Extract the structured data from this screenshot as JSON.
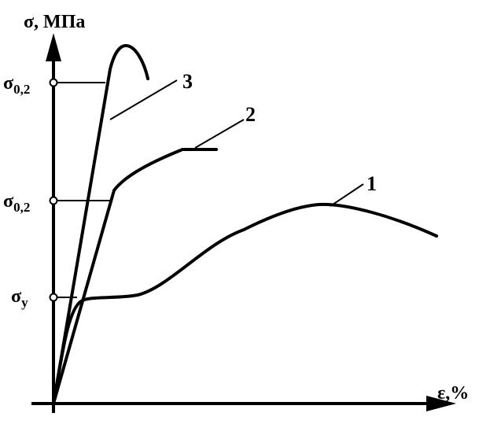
{
  "axes": {
    "y_label": "σ, МПа",
    "x_label": "ε,%"
  },
  "levels": [
    {
      "symbol": "σ",
      "subscript": "0,2"
    },
    {
      "symbol": "σ",
      "subscript": "0,2"
    },
    {
      "symbol": "σ",
      "subscript": "y"
    }
  ],
  "curves": [
    {
      "label": "1"
    },
    {
      "label": "2"
    },
    {
      "label": "3"
    }
  ]
}
